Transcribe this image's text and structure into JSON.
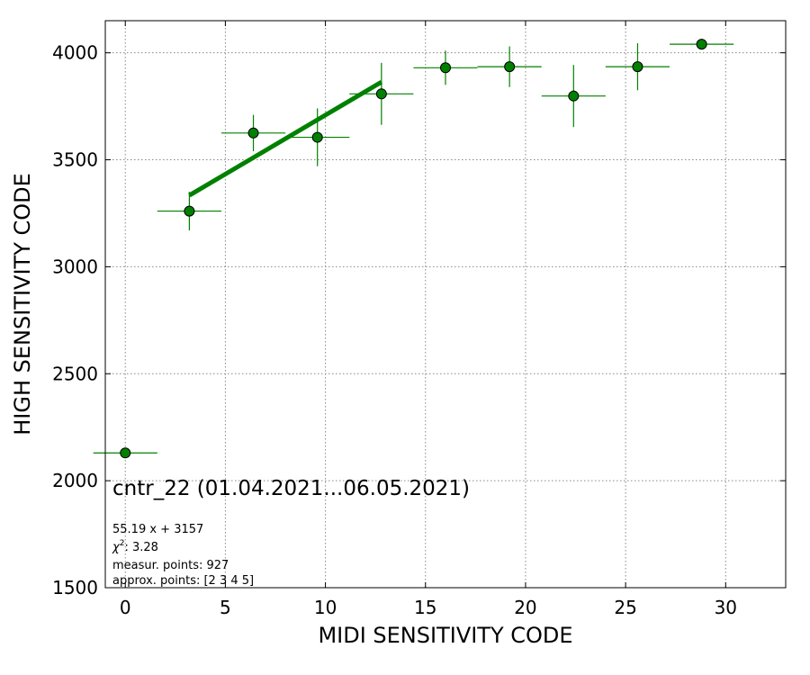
{
  "chart_data": {
    "type": "scatter",
    "xlabel": "MIDI SENSITIVITY CODE",
    "ylabel": "HIGH SENSITIVITY CODE",
    "xlim": [
      -1,
      33
    ],
    "ylim": [
      1500,
      4150
    ],
    "xticks": [
      0,
      5,
      10,
      15,
      20,
      25,
      30
    ],
    "yticks": [
      1500,
      2000,
      2500,
      3000,
      3500,
      4000
    ],
    "grid": true,
    "color": "#008000",
    "points": [
      {
        "x": 0.0,
        "y": 2130,
        "xerr": 1.6,
        "yerr": 0
      },
      {
        "x": 3.2,
        "y": 3260,
        "xerr": 1.6,
        "yerr": 90
      },
      {
        "x": 6.4,
        "y": 3625,
        "xerr": 1.6,
        "yerr": 85
      },
      {
        "x": 9.6,
        "y": 3605,
        "xerr": 1.6,
        "yerr": 135
      },
      {
        "x": 12.8,
        "y": 3808,
        "xerr": 1.6,
        "yerr": 145
      },
      {
        "x": 16.0,
        "y": 3930,
        "xerr": 1.6,
        "yerr": 80
      },
      {
        "x": 19.2,
        "y": 3935,
        "xerr": 1.6,
        "yerr": 95
      },
      {
        "x": 22.4,
        "y": 3798,
        "xerr": 1.6,
        "yerr": 145
      },
      {
        "x": 25.6,
        "y": 3935,
        "xerr": 1.6,
        "yerr": 110
      },
      {
        "x": 28.8,
        "y": 4040,
        "xerr": 1.6,
        "yerr": 25
      }
    ],
    "fit": {
      "slope": 55.19,
      "intercept": 3157,
      "x_range": [
        3.2,
        12.8
      ]
    },
    "annotations": {
      "title": "cntr_22 (01.04.2021...06.05.2021)",
      "equation": "55.19 x + 3157",
      "chi2_label": "χ",
      "chi2_sup": "2",
      "chi2_value": ": 3.28",
      "measur": "measur. points: 927",
      "approx": "approx. points: [2 3 4 5]"
    }
  }
}
